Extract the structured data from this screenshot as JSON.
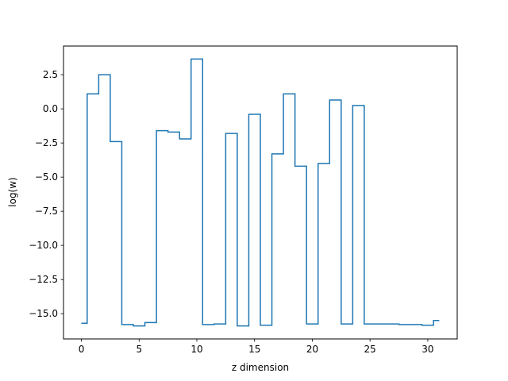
{
  "chart_data": {
    "type": "line",
    "drawstyle": "steps-mid",
    "xlabel": "z dimension",
    "ylabel": "log(w)",
    "xlim": [
      -1.55,
      32.55
    ],
    "ylim": [
      -16.85,
      4.6
    ],
    "grid": false,
    "x_ticks": [
      0,
      5,
      10,
      15,
      20,
      25,
      30
    ],
    "x_tick_labels": [
      "0",
      "5",
      "10",
      "15",
      "20",
      "25",
      "30"
    ],
    "y_ticks": [
      2.5,
      0.0,
      -2.5,
      -5.0,
      -7.5,
      -10.0,
      -12.5,
      -15.0
    ],
    "y_tick_labels": [
      "2.5",
      "0.0",
      "−2.5",
      "−5.0",
      "−7.5",
      "−10.0",
      "−12.5",
      "−15.0"
    ],
    "series": [
      {
        "color": "#1f77b4",
        "x": [
          0,
          1,
          2,
          3,
          4,
          5,
          6,
          7,
          8,
          9,
          10,
          11,
          12,
          13,
          14,
          15,
          16,
          17,
          18,
          19,
          20,
          21,
          22,
          23,
          24,
          25,
          26,
          27,
          28,
          29,
          30,
          31
        ],
        "values": [
          -15.7,
          1.1,
          2.5,
          -2.4,
          -15.8,
          -15.9,
          -15.65,
          -1.6,
          -1.7,
          -2.2,
          3.65,
          -15.8,
          -15.75,
          -1.8,
          -15.9,
          -0.4,
          -15.85,
          -3.3,
          1.1,
          -4.2,
          -15.75,
          -4.0,
          0.65,
          -15.75,
          0.25,
          -15.75,
          -15.75,
          -15.75,
          -15.8,
          -15.8,
          -15.85,
          -15.5
        ]
      }
    ]
  }
}
